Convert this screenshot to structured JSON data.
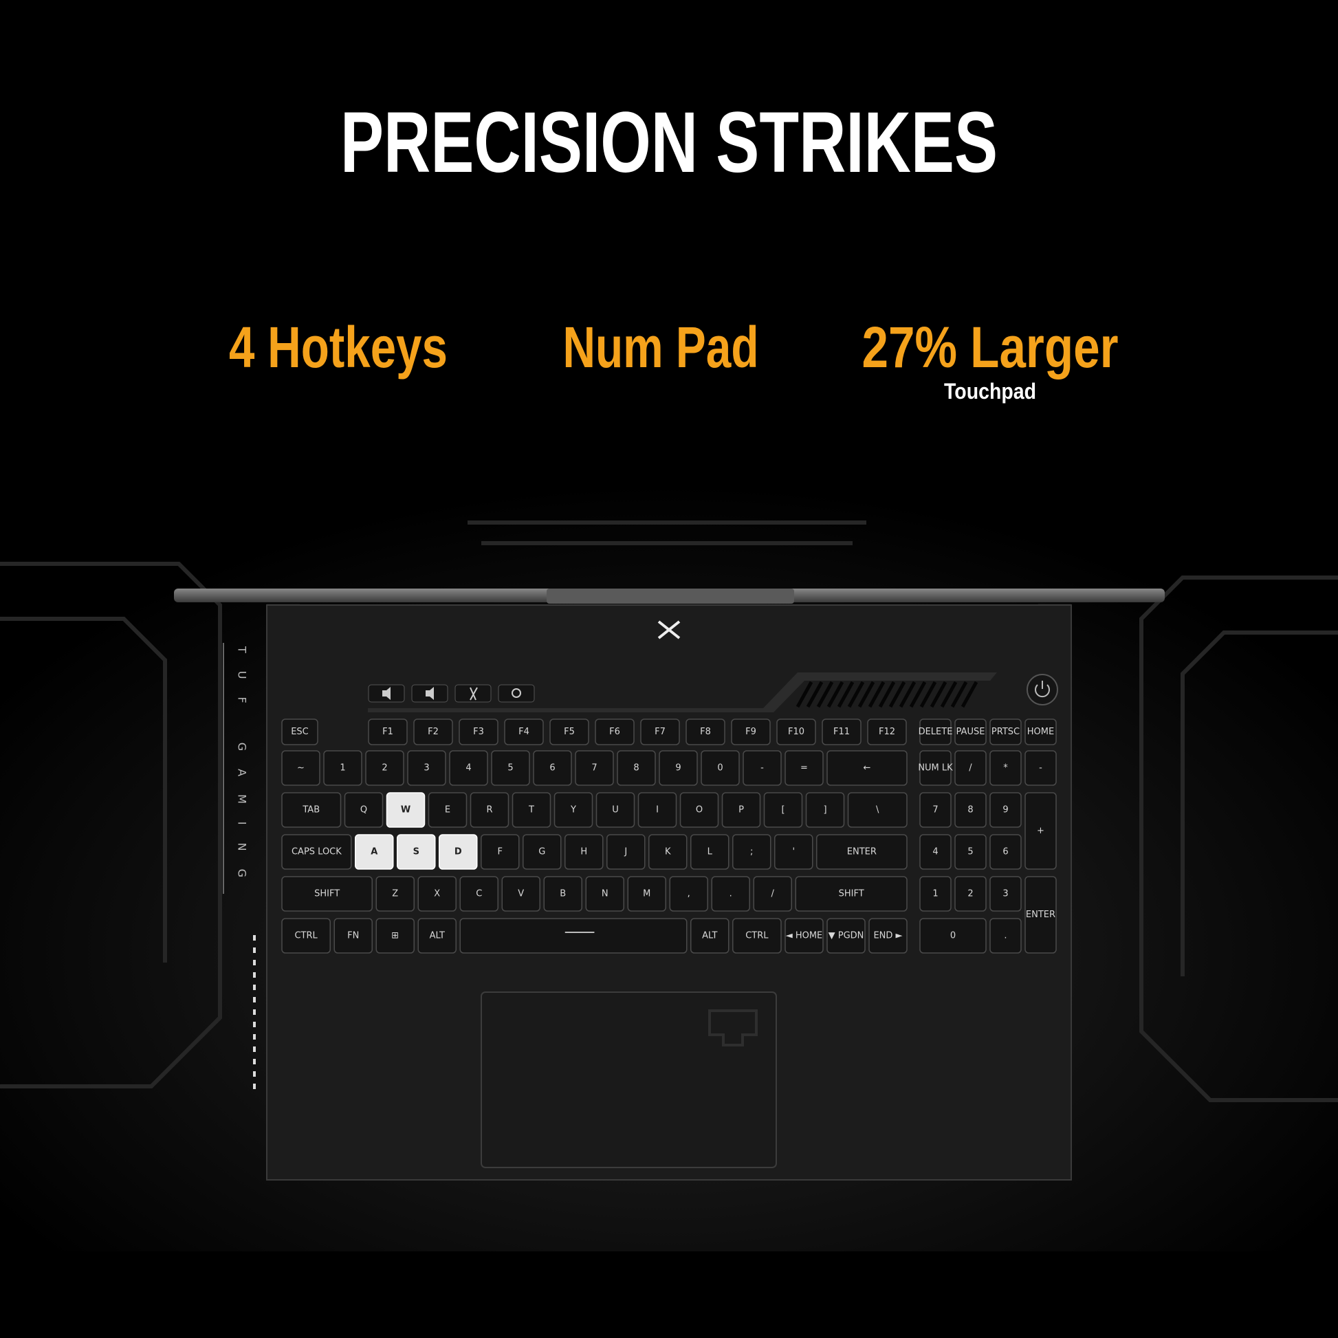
{
  "header": {
    "title": "PRECISION STRIKES"
  },
  "features": [
    {
      "label": "4 Hotkeys"
    },
    {
      "label": "Num Pad"
    },
    {
      "label": "27% Larger",
      "sublabel": "Touchpad"
    }
  ],
  "side_label": "TUF GAMING",
  "keyboard": {
    "rows": [
      [
        "ESC",
        "F1",
        "F2",
        "F3",
        "F4",
        "F5",
        "F6",
        "F7",
        "F8",
        "F9",
        "F10",
        "F11",
        "F12"
      ],
      [
        "~",
        "1",
        "2",
        "3",
        "4",
        "5",
        "6",
        "7",
        "8",
        "9",
        "0",
        "-",
        "=",
        "←"
      ],
      [
        "TAB",
        "Q",
        "W",
        "E",
        "R",
        "T",
        "Y",
        "U",
        "I",
        "O",
        "P",
        "[",
        "]",
        "\\"
      ],
      [
        "CAPS LOCK",
        "A",
        "S",
        "D",
        "F",
        "G",
        "H",
        "J",
        "K",
        "L",
        ";",
        "'",
        "ENTER"
      ],
      [
        "SHIFT",
        "Z",
        "X",
        "C",
        "V",
        "B",
        "N",
        "M",
        ",",
        ".",
        "/",
        "SHIFT"
      ],
      [
        "CTRL",
        "FN",
        "⊞",
        "ALT",
        "ALT",
        "CTRL",
        "◄ HOME",
        "▼ PGDN",
        "END ►"
      ]
    ],
    "numpad": [
      [
        "DELETE",
        "PAUSE",
        "PRTSC",
        "HOME"
      ],
      [
        "NUM LK",
        "/",
        "*",
        "-"
      ],
      [
        "7",
        "8",
        "9",
        "+"
      ],
      [
        "4",
        "5",
        "6"
      ],
      [
        "1",
        "2",
        "3",
        "ENTER"
      ],
      [
        "0",
        "."
      ]
    ]
  }
}
